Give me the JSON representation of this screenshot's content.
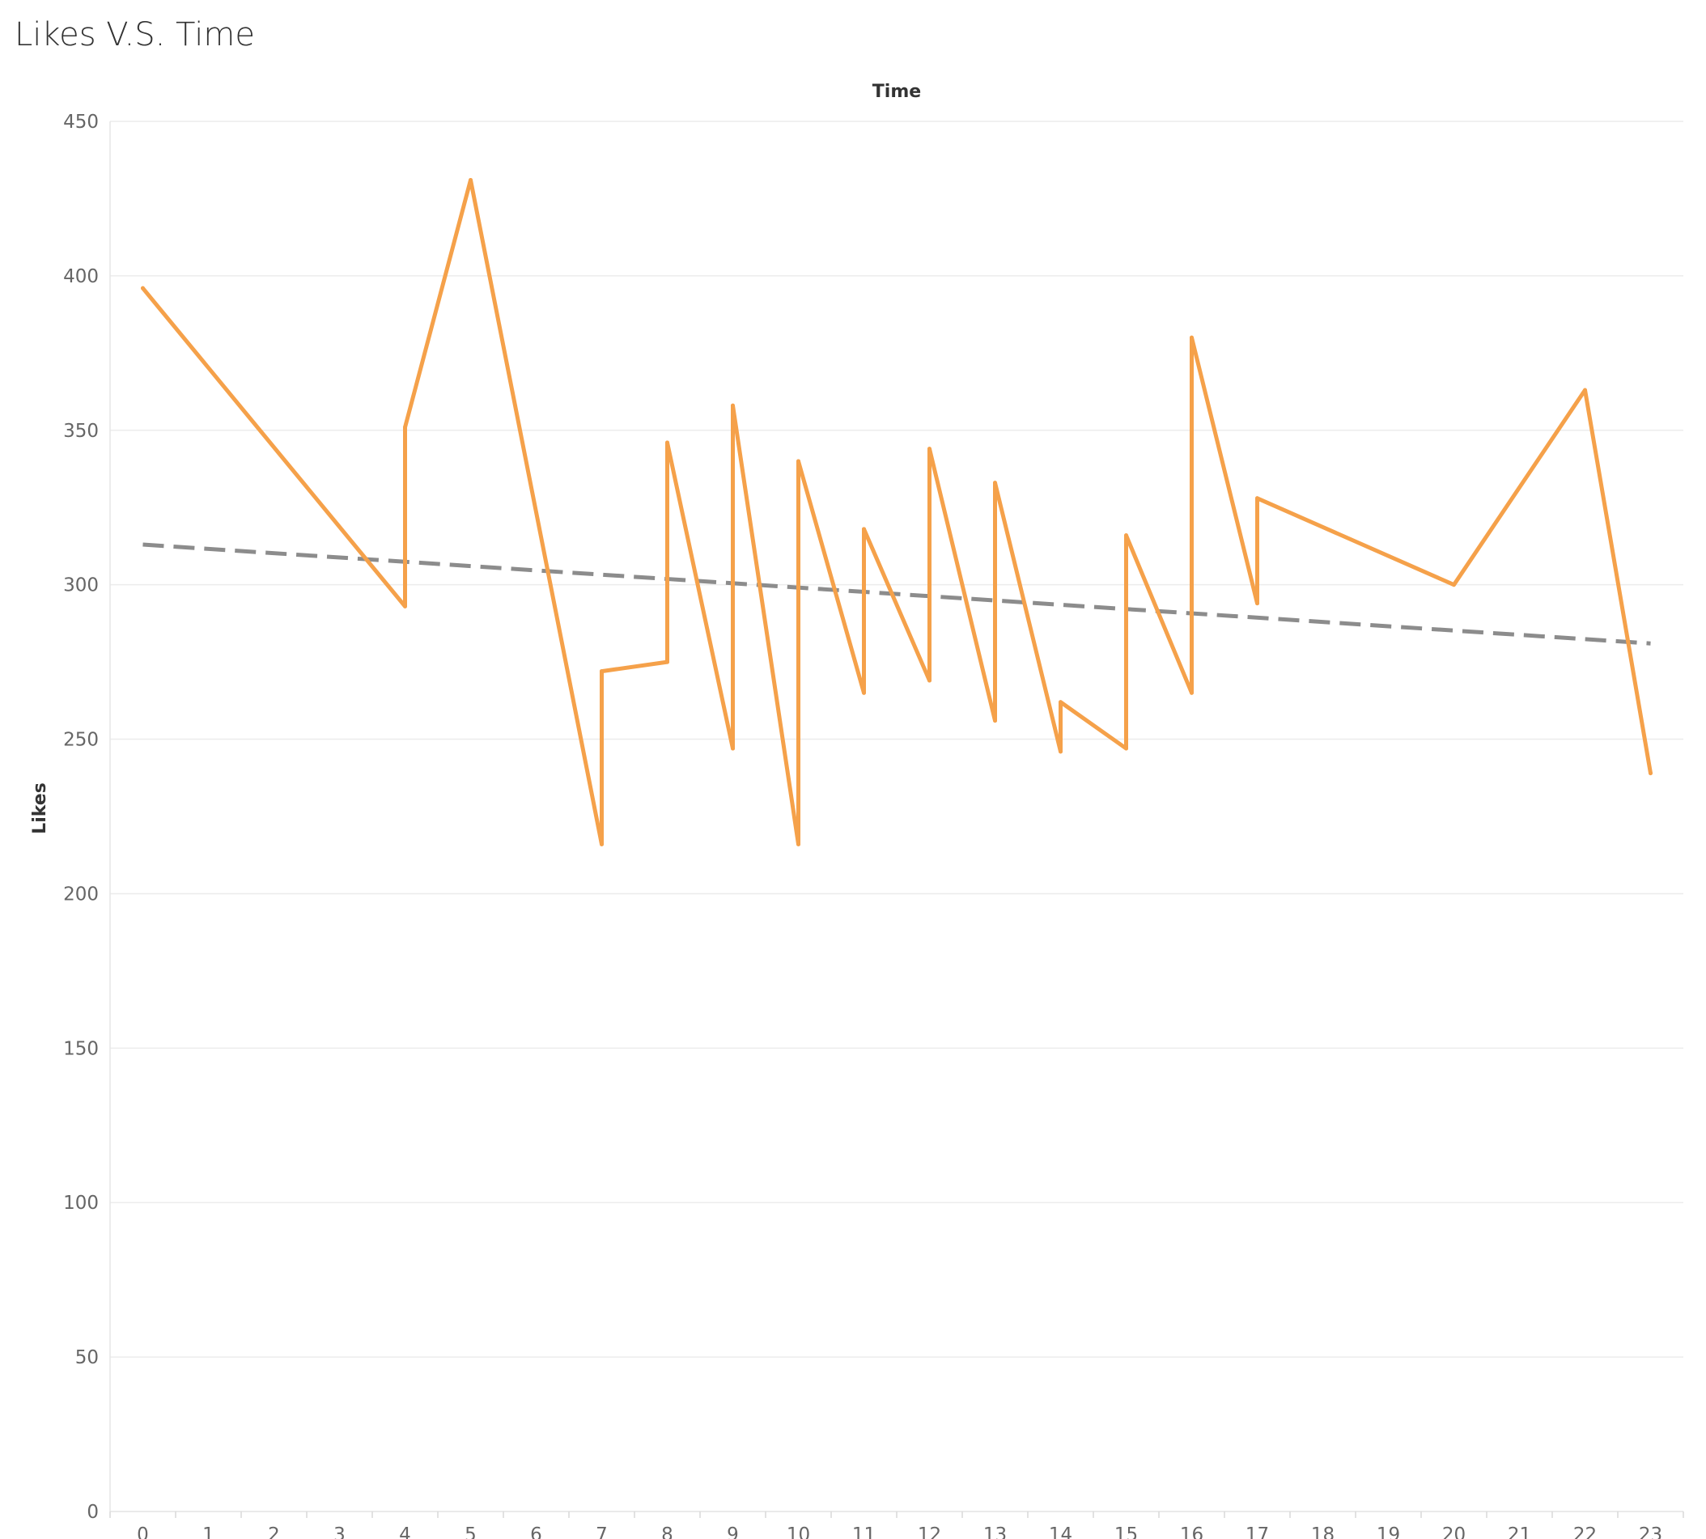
{
  "chart_data": {
    "type": "line",
    "title": "Likes V.S. Time",
    "xlabel": "Time",
    "ylabel": "Likes",
    "x_ticks": [
      "0",
      "1",
      "2",
      "3",
      "4",
      "5",
      "6",
      "7",
      "8",
      "9",
      "10",
      "11",
      "12",
      "13",
      "14",
      "15",
      "16",
      "17",
      "18",
      "19",
      "20",
      "21",
      "22",
      "23"
    ],
    "y_ticks": [
      "0",
      "50",
      "100",
      "150",
      "200",
      "250",
      "300",
      "350",
      "400",
      "450"
    ],
    "xlim": [
      -0.5,
      23.5
    ],
    "ylim": [
      0,
      450
    ],
    "grid": true,
    "series": [
      {
        "color": "#f5a14a",
        "points": [
          {
            "x": 0,
            "y": 396
          },
          {
            "x": 4,
            "y": 293
          },
          {
            "x": 4,
            "y": 351
          },
          {
            "x": 5,
            "y": 431
          },
          {
            "x": 7,
            "y": 216
          },
          {
            "x": 7,
            "y": 272
          },
          {
            "x": 8,
            "y": 275
          },
          {
            "x": 8,
            "y": 346
          },
          {
            "x": 9,
            "y": 247
          },
          {
            "x": 9,
            "y": 358
          },
          {
            "x": 10,
            "y": 216
          },
          {
            "x": 10,
            "y": 340
          },
          {
            "x": 11,
            "y": 265
          },
          {
            "x": 11,
            "y": 318
          },
          {
            "x": 12,
            "y": 269
          },
          {
            "x": 12,
            "y": 344
          },
          {
            "x": 13,
            "y": 256
          },
          {
            "x": 13,
            "y": 333
          },
          {
            "x": 14,
            "y": 246
          },
          {
            "x": 14,
            "y": 262
          },
          {
            "x": 15,
            "y": 247
          },
          {
            "x": 15,
            "y": 316
          },
          {
            "x": 16,
            "y": 265
          },
          {
            "x": 16,
            "y": 380
          },
          {
            "x": 17,
            "y": 294
          },
          {
            "x": 17,
            "y": 328
          },
          {
            "x": 20,
            "y": 300
          },
          {
            "x": 22,
            "y": 363
          },
          {
            "x": 23,
            "y": 239
          }
        ]
      }
    ],
    "trend_line": {
      "style": "dashed",
      "color": "#8c8c8c",
      "start": {
        "x": 0,
        "y": 313
      },
      "end": {
        "x": 23,
        "y": 281
      }
    }
  }
}
